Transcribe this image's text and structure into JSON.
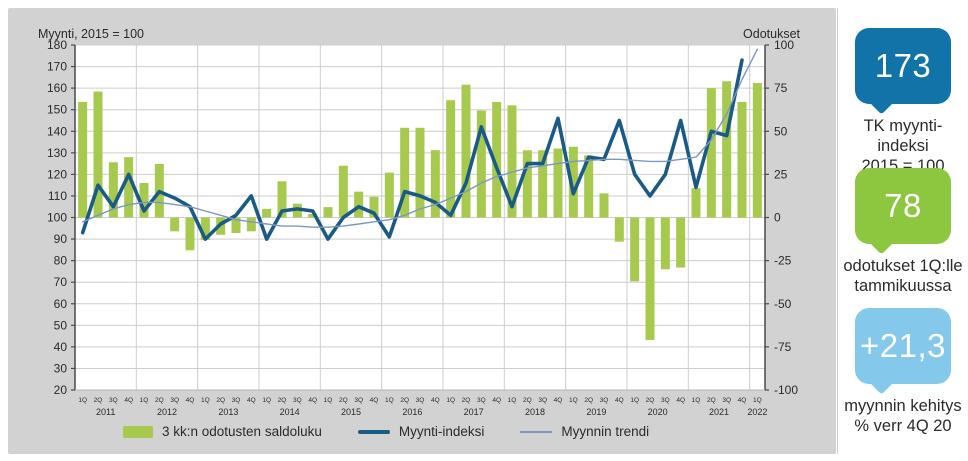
{
  "panel": {
    "left_axis_title": "Myynti, 2015 = 100",
    "right_axis_title": "Odotukset"
  },
  "chart_data": {
    "type": "bar+line combo, quarterly",
    "left_axis": {
      "min": 20,
      "max": 180,
      "step": 10
    },
    "right_axis": {
      "min": -100,
      "max": 100,
      "step": 25
    },
    "quarter_labels": [
      "1Q",
      "2Q",
      "3Q",
      "4Q"
    ],
    "years": [
      {
        "label": "2011",
        "quarters": 4
      },
      {
        "label": "2012",
        "quarters": 4
      },
      {
        "label": "2013",
        "quarters": 4
      },
      {
        "label": "2014",
        "quarters": 4
      },
      {
        "label": "2015",
        "quarters": 4
      },
      {
        "label": "2016",
        "quarters": 4
      },
      {
        "label": "2017",
        "quarters": 4
      },
      {
        "label": "2018",
        "quarters": 4
      },
      {
        "label": "2019",
        "quarters": 4
      },
      {
        "label": "2020",
        "quarters": 4
      },
      {
        "label": "2021",
        "quarters": 4
      },
      {
        "label": "2022",
        "quarters": 1
      }
    ],
    "series": [
      {
        "name": "3 kk:n odotusten saldoluku",
        "type": "bar",
        "axis": "right",
        "color": "#a6c94e",
        "values": [
          67,
          73,
          32,
          35,
          20,
          31,
          -8,
          -19,
          -13,
          -10,
          -9,
          -8,
          5,
          21,
          8,
          2,
          6,
          30,
          15,
          12,
          26,
          52,
          52,
          39,
          68,
          77,
          62,
          67,
          65,
          39,
          39,
          40,
          41,
          36,
          14,
          -14,
          -37,
          -71,
          -30,
          -29,
          17,
          75,
          79,
          67,
          78
        ]
      },
      {
        "name": "Myynti-indeksi",
        "type": "line",
        "axis": "left",
        "color": "#1a5b86",
        "stroke_width": 3.6,
        "values": [
          93,
          115,
          105,
          120,
          103,
          112,
          109,
          105,
          90,
          97,
          101,
          110,
          90,
          103,
          104,
          103,
          90,
          100,
          105,
          102,
          91,
          112,
          110,
          107,
          101,
          116,
          142,
          123,
          105,
          125,
          125,
          146,
          111,
          128,
          127,
          145,
          120,
          110,
          120,
          145,
          114,
          140,
          138,
          173
        ]
      },
      {
        "name": "Myynnin trendi",
        "type": "line",
        "axis": "left",
        "color": "#7d97c1",
        "stroke_width": 1.4,
        "values": [
          98,
          101,
          104,
          106,
          107,
          107,
          106,
          105,
          103,
          101,
          99,
          98,
          97,
          96,
          96,
          95.5,
          95.5,
          96,
          97,
          98,
          99,
          101,
          104,
          106,
          109,
          112,
          116,
          119,
          121,
          123,
          124,
          125,
          126,
          126.5,
          127,
          127,
          126.5,
          126,
          126,
          127,
          128,
          136,
          148,
          164,
          178
        ]
      }
    ],
    "grid": true,
    "legend_position": "bottom"
  },
  "badges": [
    {
      "value": "173",
      "label_lines": [
        "TK myynti-indeksi",
        "2015 = 100"
      ],
      "color": "#1273a8"
    },
    {
      "value": "78",
      "label_lines": [
        "odotukset 1Q:lle",
        "tammikuussa"
      ],
      "color": "#8dc63f"
    },
    {
      "value": "+21,3",
      "label_lines": [
        "myynnin kehitys",
        "% verr 4Q 20"
      ],
      "color": "#84c8ec"
    }
  ],
  "colors": {
    "panel_bg": "#d2d2d2",
    "plot_bg": "#ffffff",
    "gridline": "#cdcdcd",
    "axis": "#4a4a4a",
    "text": "#2b2b2b"
  }
}
